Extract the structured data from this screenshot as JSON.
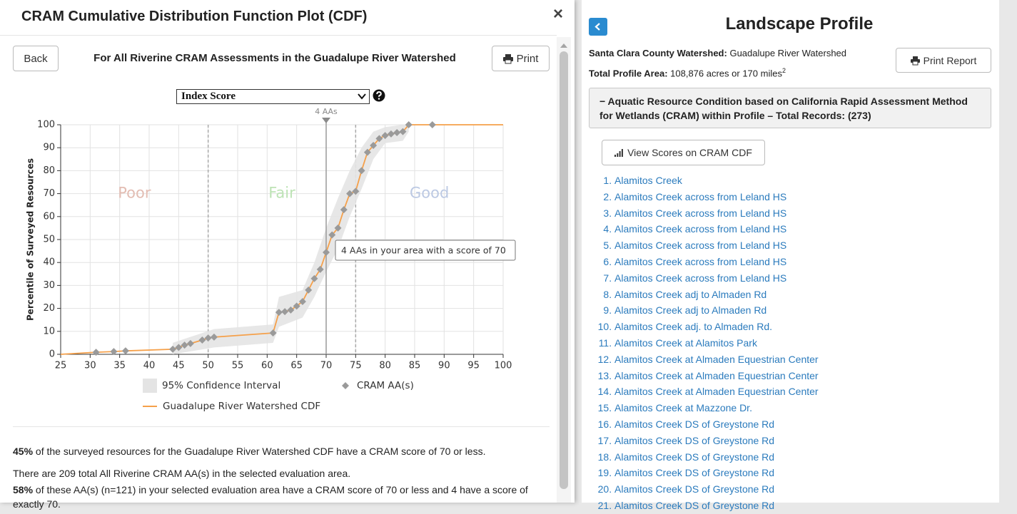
{
  "header": {
    "title": "CRAM Cumulative Distribution Function Plot (CDF)",
    "close": "×"
  },
  "toolbar": {
    "back": "Back",
    "subtitle": "For All Riverine CRAM Assessments in the Guadalupe River Watershed",
    "print": "Print",
    "select": "Index Score"
  },
  "chart_data": {
    "type": "cdf",
    "y_label": "Percentile of Surveyed Resources",
    "xlim": [
      25,
      100
    ],
    "xticks": [
      25,
      30,
      35,
      40,
      45,
      50,
      55,
      60,
      65,
      70,
      75,
      80,
      85,
      90,
      95,
      100
    ],
    "ylim": [
      0,
      100
    ],
    "yticks": [
      0,
      10,
      20,
      30,
      40,
      50,
      60,
      70,
      80,
      90,
      100
    ],
    "grid": true,
    "thresholds": [
      50,
      75
    ],
    "regions": [
      {
        "label": "Poor",
        "color": "#e3bdb3"
      },
      {
        "label": "Fair",
        "color": "#bde3b5"
      },
      {
        "label": "Good",
        "color": "#bcc9e3"
      }
    ],
    "marker": {
      "value": 70,
      "label": "4 AAs",
      "tooltip": "4 AAs in your area with a score of 70"
    },
    "series": [
      {
        "name": "95% Confidence Interval",
        "color": "#e4e4e4",
        "x": [
          44,
          51,
          61,
          62,
          66,
          68,
          70,
          72,
          74,
          76,
          78,
          80,
          83,
          84
        ],
        "lower": [
          0,
          3,
          5,
          12,
          16,
          25,
          36,
          46,
          60,
          72,
          85,
          92,
          93,
          97
        ],
        "upper": [
          5,
          11,
          13,
          25,
          28,
          40,
          55,
          68,
          80,
          90,
          97,
          99,
          100,
          100
        ]
      },
      {
        "name": "CRAM AA(s)",
        "color": "#9a9a9a",
        "x": [
          31,
          34,
          36,
          44,
          45,
          46,
          47,
          49,
          50,
          51,
          61,
          62,
          63,
          64,
          65,
          66,
          67,
          68,
          69,
          70,
          71,
          72,
          73,
          74,
          75,
          76,
          77,
          78,
          79,
          80,
          81,
          82,
          83,
          84,
          88
        ],
        "values": [
          0.9,
          1.2,
          1.5,
          2.2,
          3,
          4,
          4.7,
          6.2,
          7.1,
          7.5,
          9.3,
          18.3,
          18.6,
          19.3,
          21,
          23,
          28,
          33,
          37,
          44.4,
          52,
          55,
          63,
          70,
          71,
          80,
          88,
          91,
          94,
          95.3,
          96,
          96.6,
          97,
          100,
          100
        ]
      },
      {
        "name": "Guadalupe River Watershed CDF",
        "color": "#f5a04a",
        "x": [
          25,
          31,
          34,
          36,
          44,
          45,
          46,
          47,
          49,
          50,
          51,
          61,
          62,
          63,
          64,
          65,
          66,
          67,
          68,
          69,
          70,
          71,
          72,
          73,
          74,
          75,
          76,
          77,
          78,
          79,
          80,
          81,
          82,
          83,
          84,
          88,
          100
        ],
        "values": [
          0,
          0.9,
          1.2,
          1.5,
          2.2,
          3,
          4,
          4.7,
          6.2,
          7.1,
          7.5,
          9.3,
          18.3,
          18.6,
          19.3,
          21,
          23,
          28,
          33,
          37,
          44.4,
          52,
          55,
          63,
          70,
          71,
          80,
          88,
          91,
          94,
          95.3,
          96,
          96.6,
          97,
          100,
          100,
          100
        ]
      }
    ]
  },
  "summary": [
    {
      "strong": "45%",
      "text": " of the surveyed resources for the Guadalupe River Watershed CDF have a CRAM score of 70 or less."
    },
    {
      "strong": "",
      "text": "There are 209 total All Riverine CRAM AA(s) in the selected evaluation area."
    },
    {
      "strong": "58%",
      "text": " of these AA(s) (n=121) in your selected evaluation area have a CRAM score of 70 or less and 4 have a score of exactly 70."
    }
  ],
  "profile": {
    "title": "Landscape Profile",
    "watershed_label": "Santa Clara County Watershed:",
    "watershed": " Guadalupe River Watershed",
    "area_label": "Total Profile Area:",
    "area": " 108,876 acres or 170 miles",
    "area_sup": "2",
    "print": "Print Report",
    "section": "− Aquatic Resource Condition based on California Rapid Assessment Method for Wetlands (CRAM) within Profile – Total Records: (273)",
    "view_button": "View Scores on CRAM CDF",
    "items": [
      "Alamitos Creek",
      "Alamitos Creek across from Leland HS",
      "Alamitos Creek across from Leland HS",
      "Alamitos Creek across from Leland HS",
      "Alamitos Creek across from Leland HS",
      "Alamitos Creek across from Leland HS",
      "Alamitos Creek across from Leland HS",
      "Alamitos Creek adj to Almaden Rd",
      "Alamitos Creek adj to Almaden Rd",
      "Alamitos Creek adj. to Almaden Rd.",
      "Alamitos Creek at Alamitos Park",
      "Alamitos Creek at Almaden Equestrian Center",
      "Alamitos Creek at Almaden Equestrian Center",
      "Alamitos Creek at Almaden Equestrian Center",
      "Alamitos Creek at Mazzone Dr.",
      "Alamitos Creek DS of Greystone Rd",
      "Alamitos Creek DS of Greystone Rd",
      "Alamitos Creek DS of Greystone Rd",
      "Alamitos Creek DS of Greystone Rd",
      "Alamitos Creek DS of Greystone Rd",
      "Alamitos Creek DS of Greystone Rd"
    ]
  }
}
